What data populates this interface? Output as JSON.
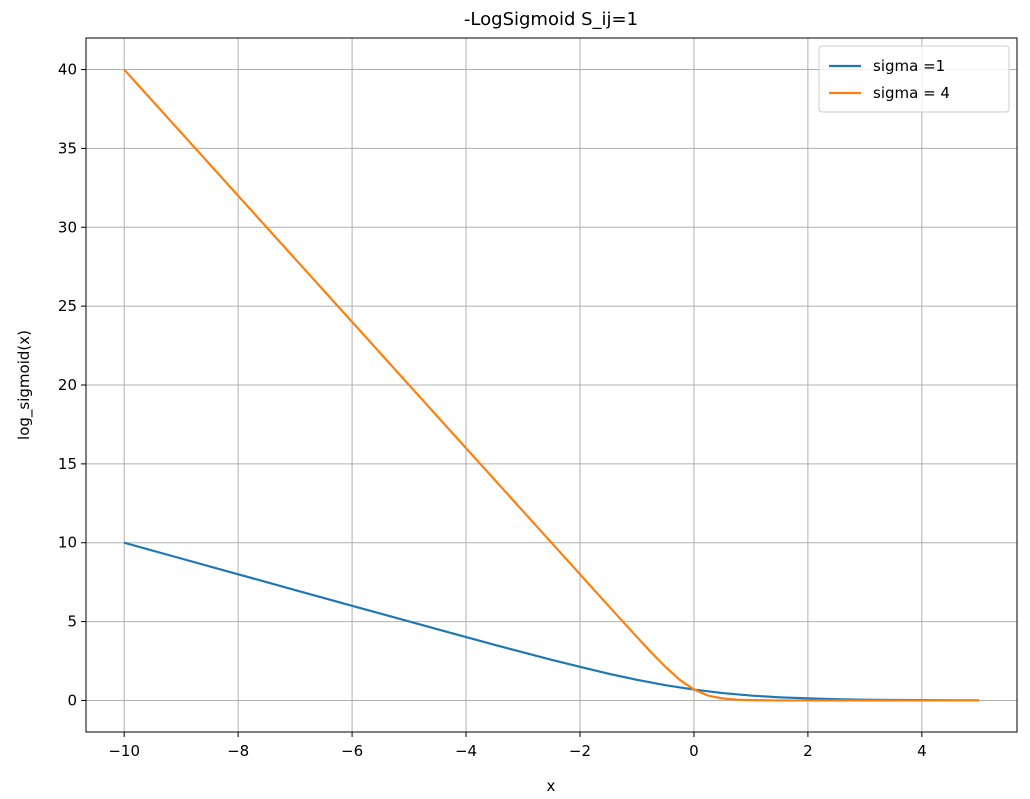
{
  "chart_data": {
    "type": "line",
    "title": "-LogSigmoid S_ij=1",
    "xlabel": "x",
    "ylabel": "log_sigmoid(x)",
    "xlim": [
      -10.67,
      5.67
    ],
    "ylim": [
      -2.0,
      42.0
    ],
    "xticks": [
      -10,
      -8,
      -6,
      -4,
      -2,
      0,
      2,
      4
    ],
    "xtick_labels": [
      "−10",
      "−8",
      "−6",
      "−4",
      "−2",
      "0",
      "2",
      "4"
    ],
    "yticks": [
      0,
      5,
      10,
      15,
      20,
      25,
      30,
      35,
      40
    ],
    "ytick_labels": [
      "0",
      "5",
      "10",
      "15",
      "20",
      "25",
      "30",
      "35",
      "40"
    ],
    "grid": true,
    "legend_position": "top-right",
    "series": [
      {
        "name": "sigma =1",
        "color": "#1f77b4",
        "x": [
          -10,
          -9,
          -8,
          -7,
          -6,
          -5,
          -4,
          -3.5,
          -3,
          -2.5,
          -2,
          -1.5,
          -1,
          -0.5,
          0,
          0.5,
          1,
          1.5,
          2,
          2.5,
          3,
          3.5,
          4,
          4.5,
          5
        ],
        "y": [
          10.0,
          9.0,
          8.0,
          7.0,
          6.0,
          5.01,
          4.02,
          3.53,
          3.05,
          2.58,
          2.13,
          1.7,
          1.31,
          0.97,
          0.69,
          0.47,
          0.31,
          0.2,
          0.13,
          0.08,
          0.05,
          0.03,
          0.02,
          0.01,
          0.01
        ]
      },
      {
        "name": "sigma = 4",
        "color": "#ff7f0e",
        "x": [
          -10,
          -8,
          -6,
          -4,
          -3,
          -2,
          -1.5,
          -1.25,
          -1,
          -0.75,
          -0.5,
          -0.25,
          0,
          0.25,
          0.5,
          0.75,
          1,
          1.5,
          2,
          3,
          4,
          5
        ],
        "y": [
          40.0,
          32.0,
          24.0,
          16.0,
          12.0,
          8.0,
          6.0,
          5.01,
          4.02,
          3.05,
          2.13,
          1.31,
          0.69,
          0.31,
          0.13,
          0.05,
          0.02,
          0.0,
          0.0,
          0.0,
          0.0,
          0.0
        ]
      }
    ]
  }
}
